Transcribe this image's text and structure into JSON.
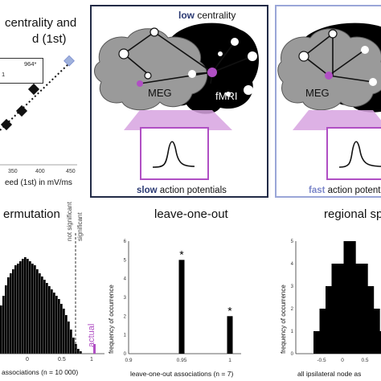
{
  "top_left": {
    "title_line1": "centrality and",
    "title_line2": "d (1st)",
    "stat_line1": "964*",
    "stat_line2": "1",
    "xlabel": "eed (1st) in mV/ms",
    "ticks": [
      "350",
      "400",
      "450"
    ]
  },
  "panel_low": {
    "header_bold": "low",
    "header_rest": " centrality",
    "label_meg": "MEG",
    "label_fmri": "fMRI",
    "caption_bold": "slow",
    "caption_rest": " action potentials"
  },
  "panel_fast": {
    "label_meg": "MEG",
    "caption_bold": "fast",
    "caption_rest": " action potent"
  },
  "bottom": {
    "permutation_title": "ermutation",
    "perm_not_significant": "not significant",
    "perm_significant": "significant",
    "perm_actual": "actual",
    "perm_ticks": [
      "0",
      "0.5",
      "1"
    ],
    "perm_xlabel": "associations (n = 10 000)",
    "loo_title": "leave-one-out",
    "loo_ylabel": "frequency of occurrence",
    "loo_ticks_x": [
      "0.9",
      "0.95",
      "1"
    ],
    "loo_ticks_y": [
      "0",
      "1",
      "2",
      "3",
      "4",
      "5",
      "6"
    ],
    "loo_xlabel": "leave-one-out associations (n = 7)",
    "loo_star_a": "*",
    "loo_star_b": "*",
    "reg_title": "regional sp",
    "reg_ylabel": "frequency of occurrence",
    "reg_ticks_x": [
      "-0.5",
      "0",
      "0.5"
    ],
    "reg_ticks_y": [
      "0",
      "1",
      "2",
      "3",
      "4",
      "5"
    ],
    "reg_xlabel": "all ipsilateral node as"
  },
  "colors": {
    "accent_purple": "#b04fc4",
    "panel_dark": "#222b47",
    "panel_light": "#9aa6d8",
    "fast_blue": "#7b86c9"
  },
  "chart_data": [
    {
      "type": "scatter",
      "title": "",
      "x": [
        320,
        345,
        380,
        440
      ],
      "y": [
        0.2,
        0.35,
        0.55,
        0.78
      ],
      "trend": "dotted-line"
    },
    {
      "type": "bar",
      "title": "leave-one-out",
      "categories": [
        "0.95",
        "1"
      ],
      "values": [
        5,
        2
      ],
      "ylim": [
        0,
        6
      ],
      "xlabel": "leave-one-out associations (n = 7)",
      "ylabel": "frequency of occurrence"
    },
    {
      "type": "bar",
      "title": "regional sp",
      "categories": [
        "-0.6",
        "-0.5",
        "-0.4",
        "-0.3",
        "-0.2",
        "-0.1",
        "0",
        "0.1",
        "0.2",
        "0.3",
        "0.4",
        "0.5"
      ],
      "values": [
        1,
        2,
        3,
        4,
        4,
        5,
        5,
        4,
        4,
        3,
        2,
        1
      ],
      "ylim": [
        0,
        5
      ],
      "xlabel": "all ipsilateral node as",
      "ylabel": "frequency of occurrence"
    }
  ]
}
